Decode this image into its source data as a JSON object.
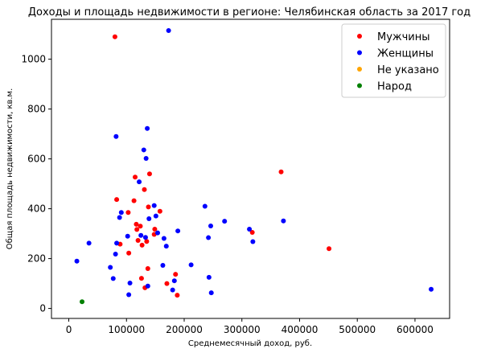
{
  "chart_data": {
    "type": "scatter",
    "title": "Доходы и площадь недвижимости в регионе: Челябинская область за 2017 год",
    "xlabel": "Среднемесячный доход, руб.",
    "ylabel": "Общая площадь недвижимости, кв.м.",
    "xlim": [
      -30000,
      660000
    ],
    "ylim": [
      -40,
      1160
    ],
    "xticks": [
      0,
      100000,
      200000,
      300000,
      400000,
      500000,
      600000
    ],
    "yticks": [
      0,
      200,
      400,
      600,
      800,
      1000
    ],
    "grid": false,
    "legend_position": "top-right",
    "series": [
      {
        "name": "Мужчины",
        "color": "#ff0000",
        "points": [
          [
            80000,
            1090
          ],
          [
            83000,
            437
          ],
          [
            89000,
            258
          ],
          [
            103000,
            385
          ],
          [
            104000,
            222
          ],
          [
            113000,
            432
          ],
          [
            115000,
            527
          ],
          [
            117000,
            338
          ],
          [
            118000,
            317
          ],
          [
            120000,
            273
          ],
          [
            124000,
            330
          ],
          [
            126000,
            121
          ],
          [
            127000,
            254
          ],
          [
            131000,
            477
          ],
          [
            132000,
            83
          ],
          [
            135000,
            269
          ],
          [
            137000,
            160
          ],
          [
            138000,
            407
          ],
          [
            140000,
            540
          ],
          [
            148000,
            297
          ],
          [
            149000,
            318
          ],
          [
            158000,
            390
          ],
          [
            170000,
            100
          ],
          [
            185000,
            137
          ],
          [
            188000,
            53
          ],
          [
            318000,
            305
          ],
          [
            368000,
            548
          ],
          [
            451000,
            240
          ]
        ]
      },
      {
        "name": "Женщины",
        "color": "#0000ff",
        "points": [
          [
            14000,
            190
          ],
          [
            35000,
            262
          ],
          [
            72000,
            165
          ],
          [
            77000,
            120
          ],
          [
            81000,
            218
          ],
          [
            82000,
            690
          ],
          [
            83000,
            262
          ],
          [
            88000,
            365
          ],
          [
            91000,
            385
          ],
          [
            102000,
            290
          ],
          [
            104000,
            55
          ],
          [
            106000,
            102
          ],
          [
            122000,
            508
          ],
          [
            125000,
            293
          ],
          [
            130000,
            636
          ],
          [
            133000,
            285
          ],
          [
            134000,
            602
          ],
          [
            136000,
            722
          ],
          [
            137000,
            90
          ],
          [
            139000,
            360
          ],
          [
            148000,
            413
          ],
          [
            151000,
            371
          ],
          [
            154000,
            303
          ],
          [
            163000,
            173
          ],
          [
            165000,
            281
          ],
          [
            169000,
            250
          ],
          [
            173000,
            1115
          ],
          [
            180000,
            74
          ],
          [
            183000,
            111
          ],
          [
            189000,
            311
          ],
          [
            212000,
            175
          ],
          [
            236000,
            410
          ],
          [
            242000,
            284
          ],
          [
            243000,
            125
          ],
          [
            246000,
            331
          ],
          [
            247000,
            63
          ],
          [
            270000,
            350
          ],
          [
            313000,
            318
          ],
          [
            319000,
            268
          ],
          [
            372000,
            351
          ],
          [
            628000,
            77
          ]
        ]
      },
      {
        "name": "Не указано",
        "color": "#ffa500",
        "points": []
      },
      {
        "name": "Народ",
        "color": "#008000",
        "points": [
          [
            23000,
            27
          ]
        ]
      }
    ]
  }
}
